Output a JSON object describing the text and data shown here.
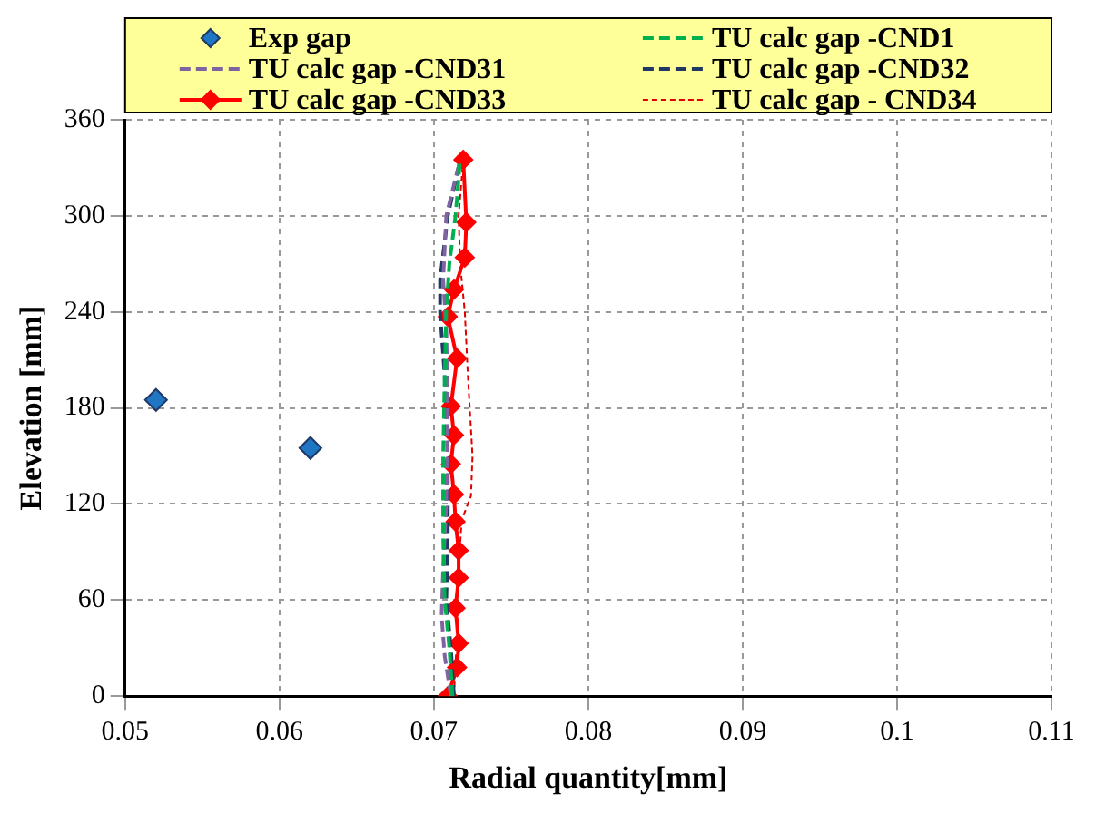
{
  "chart_data": {
    "type": "line",
    "xlabel": "Radial quantity[mm]",
    "ylabel": "Elevation [mm]",
    "xlim": [
      0.05,
      0.11
    ],
    "xticks": [
      0.05,
      0.06,
      0.07,
      0.08,
      0.09,
      0.1,
      0.11
    ],
    "ylim": [
      0,
      360
    ],
    "yticks": [
      0,
      60,
      120,
      180,
      240,
      300,
      360
    ],
    "grid": true,
    "legend": "top",
    "series": [
      {
        "name": "Exp gap",
        "type": "scatter",
        "marker": "diamond",
        "color": "#1f77c4",
        "x": [
          0.052,
          0.062
        ],
        "values": [
          185,
          155
        ]
      },
      {
        "name": "TU calc gap -CND1",
        "marker": "none",
        "line_style": "dashed",
        "color": "#00b050",
        "x": [
          0.0712,
          0.071,
          0.0707,
          0.0706,
          0.0706,
          0.0707,
          0.0708,
          0.071,
          0.0714,
          0.0717
        ],
        "values": [
          0,
          30,
          60,
          100,
          150,
          200,
          240,
          270,
          300,
          335
        ]
      },
      {
        "name": "TU calc gap -CND31",
        "marker": "none",
        "line_style": "dashed",
        "color": "#8064a2",
        "x": [
          0.0711,
          0.0707,
          0.0705,
          0.0706,
          0.0708,
          0.0709,
          0.0708,
          0.0706,
          0.0708,
          0.0717
        ],
        "values": [
          0,
          25,
          50,
          80,
          120,
          180,
          230,
          260,
          300,
          335
        ]
      },
      {
        "name": "TU calc gap -CND32",
        "marker": "none",
        "line_style": "dashed",
        "color": "#1f3864",
        "x": [
          0.0713,
          0.0711,
          0.0708,
          0.0709,
          0.0709,
          0.0707,
          0.0704,
          0.0704,
          0.0709,
          0.0717
        ],
        "values": [
          0,
          30,
          60,
          100,
          150,
          200,
          240,
          260,
          300,
          335
        ]
      },
      {
        "name": "TU calc gap -CND33",
        "marker": "diamond",
        "line_style": "solid",
        "color": "#ff0000",
        "x": [
          0.0709,
          0.0715,
          0.0716,
          0.0714,
          0.0716,
          0.0716,
          0.0714,
          0.0713,
          0.0711,
          0.0713,
          0.0711,
          0.0715,
          0.0709,
          0.0713,
          0.072,
          0.0721,
          0.0719
        ],
        "values": [
          0,
          18,
          33,
          55,
          74,
          91,
          109,
          126,
          145,
          163,
          181,
          211,
          237,
          254,
          274,
          296,
          335
        ]
      },
      {
        "name": "TU calc gap - CND34",
        "marker": "none",
        "line_style": "dotted",
        "color": "#e00000",
        "x": [
          0.0713,
          0.0715,
          0.0716,
          0.0718,
          0.0724,
          0.0725,
          0.0722,
          0.072,
          0.0717,
          0.0716,
          0.0719
        ],
        "values": [
          0,
          40,
          80,
          110,
          125,
          150,
          200,
          240,
          270,
          300,
          335
        ]
      }
    ]
  }
}
